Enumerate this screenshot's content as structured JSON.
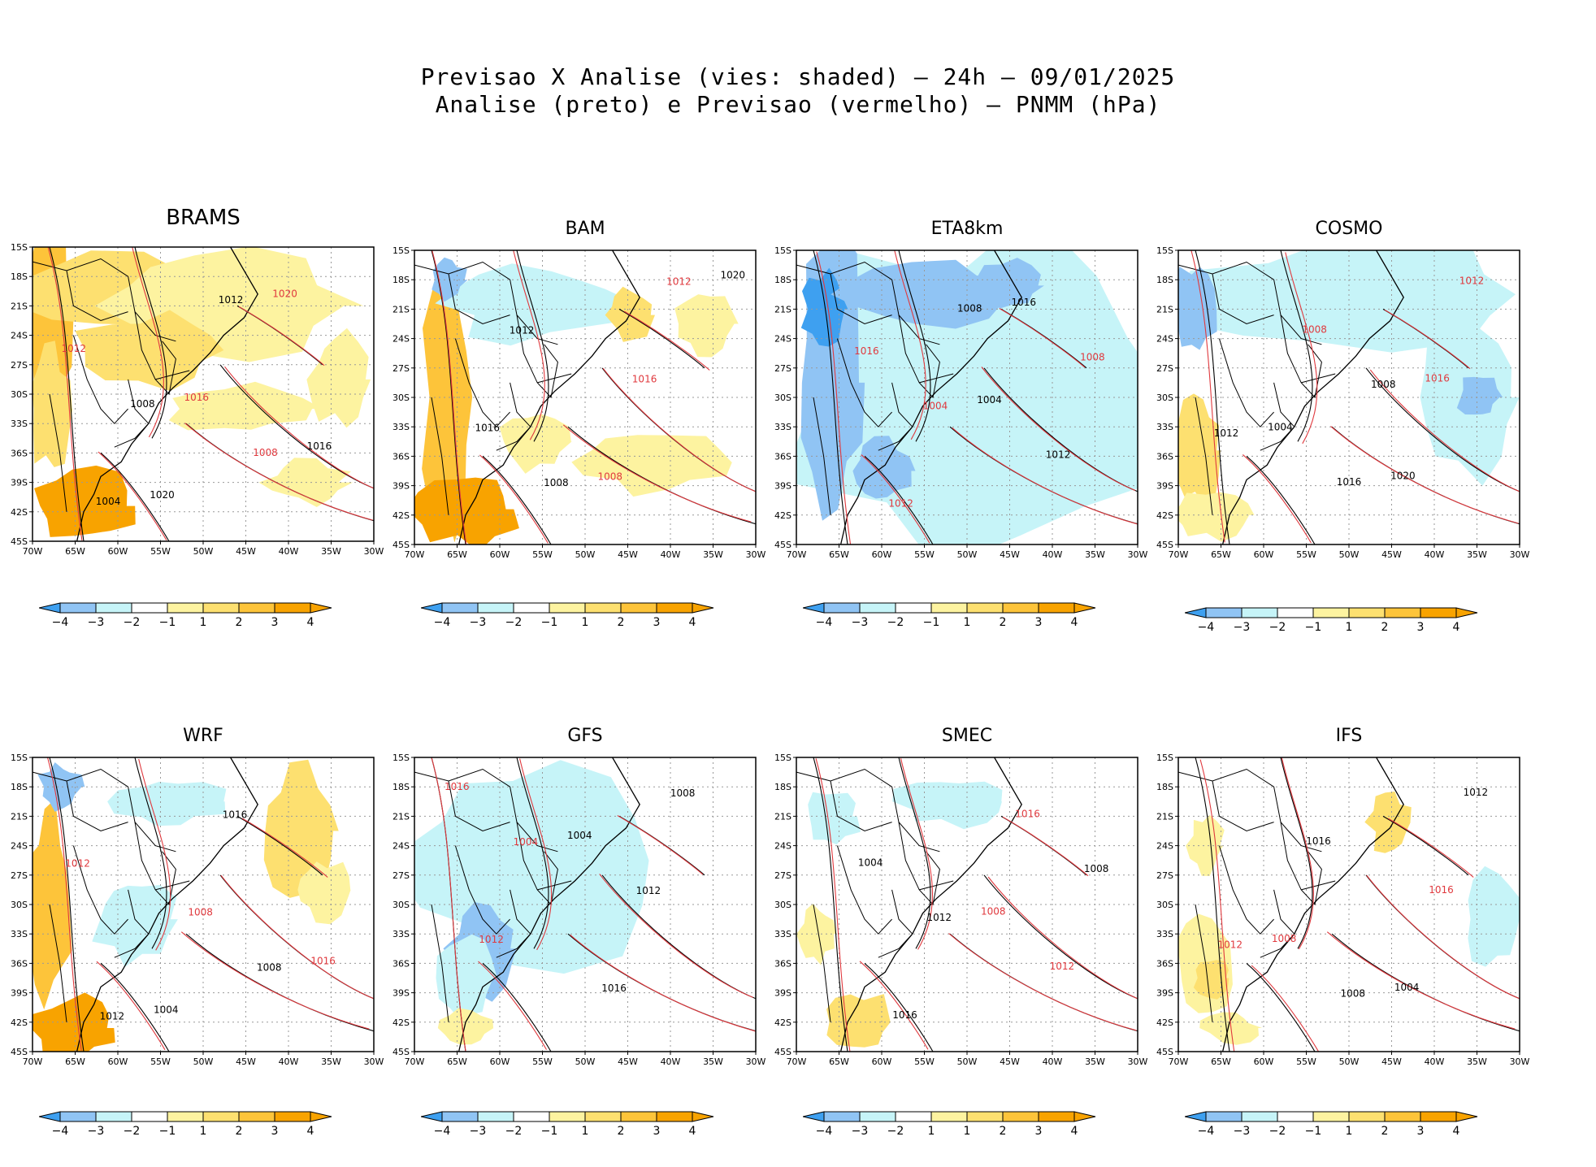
{
  "header": {
    "line1": "Previsao X Analise (vies: shaded) – 24h – 09/01/2025",
    "line2": "Analise (preto) e Previsao (vermelho) – PNMM (hPa)"
  },
  "colors": {
    "analysis_contour": "#000000",
    "forecast_contour": "#e0393e",
    "bias_neg4": "#3ea0f0",
    "bias_neg3": "#90c4f4",
    "bias_neg2": "#c6f4f8",
    "bias_neutral": "#ffffff",
    "bias_pos1": "#fdf3a0",
    "bias_pos2": "#fde070",
    "bias_pos3": "#fdc43a",
    "bias_pos4": "#f8a300"
  },
  "axes": {
    "lat_labels": [
      "15S",
      "18S",
      "21S",
      "24S",
      "27S",
      "30S",
      "33S",
      "36S",
      "39S",
      "42S",
      "45S"
    ],
    "lon_labels": [
      "70W",
      "65W",
      "60W",
      "55W",
      "50W",
      "45W",
      "40W",
      "35W",
      "30W"
    ]
  },
  "colorbar": {
    "labels": [
      "-4",
      "-3",
      "-2",
      "-1",
      "1",
      "2",
      "3",
      "4"
    ]
  },
  "panels": [
    {
      "name": "BRAMS",
      "contours": [
        {
          "t": "1008",
          "c": "k"
        },
        {
          "t": "1008",
          "c": "r"
        },
        {
          "t": "1004",
          "c": "k"
        },
        {
          "t": "1012",
          "c": "k"
        },
        {
          "t": "1012",
          "c": "r"
        },
        {
          "t": "1016",
          "c": "r"
        },
        {
          "t": "1016",
          "c": "k"
        },
        {
          "t": "1020",
          "c": "k"
        },
        {
          "t": "1020",
          "c": "r"
        }
      ]
    },
    {
      "name": "BAM",
      "contours": [
        {
          "t": "1008",
          "c": "k"
        },
        {
          "t": "1012",
          "c": "r"
        },
        {
          "t": "1012",
          "c": "k"
        },
        {
          "t": "1016",
          "c": "r"
        },
        {
          "t": "1016",
          "c": "k"
        },
        {
          "t": "1008",
          "c": "r"
        },
        {
          "t": "1020",
          "c": "k"
        }
      ]
    },
    {
      "name": "ETA8km",
      "contours": [
        {
          "t": "1008",
          "c": "k"
        },
        {
          "t": "1008",
          "c": "r"
        },
        {
          "t": "1004",
          "c": "r"
        },
        {
          "t": "1012",
          "c": "k"
        },
        {
          "t": "1012",
          "c": "r"
        },
        {
          "t": "1016",
          "c": "k"
        },
        {
          "t": "1016",
          "c": "r"
        },
        {
          "t": "1004",
          "c": "k"
        }
      ]
    },
    {
      "name": "COSMO",
      "contours": [
        {
          "t": "1008",
          "c": "k"
        },
        {
          "t": "1012",
          "c": "k"
        },
        {
          "t": "1016",
          "c": "k"
        },
        {
          "t": "1012",
          "c": "r"
        },
        {
          "t": "1008",
          "c": "r"
        },
        {
          "t": "1016",
          "c": "r"
        },
        {
          "t": "1004",
          "c": "k"
        },
        {
          "t": "1020",
          "c": "k"
        }
      ]
    },
    {
      "name": "WRF",
      "contours": [
        {
          "t": "1008",
          "c": "k"
        },
        {
          "t": "1012",
          "c": "k"
        },
        {
          "t": "1016",
          "c": "k"
        },
        {
          "t": "1012",
          "c": "r"
        },
        {
          "t": "1008",
          "c": "r"
        },
        {
          "t": "1016",
          "c": "r"
        },
        {
          "t": "1004",
          "c": "k"
        }
      ]
    },
    {
      "name": "GFS",
      "contours": [
        {
          "t": "1008",
          "c": "k"
        },
        {
          "t": "1004",
          "c": "r"
        },
        {
          "t": "1012",
          "c": "k"
        },
        {
          "t": "1012",
          "c": "r"
        },
        {
          "t": "1016",
          "c": "k"
        },
        {
          "t": "1016",
          "c": "r"
        },
        {
          "t": "1004",
          "c": "k"
        }
      ]
    },
    {
      "name": "SMEC",
      "contours": [
        {
          "t": "1008",
          "c": "k"
        },
        {
          "t": "1012",
          "c": "k"
        },
        {
          "t": "1012",
          "c": "r"
        },
        {
          "t": "1016",
          "c": "k"
        },
        {
          "t": "1016",
          "c": "r"
        },
        {
          "t": "1004",
          "c": "k"
        },
        {
          "t": "1008",
          "c": "r"
        }
      ]
    },
    {
      "name": "IFS",
      "contours": [
        {
          "t": "1012",
          "c": "r"
        },
        {
          "t": "1008",
          "c": "k"
        },
        {
          "t": "1012",
          "c": "k"
        },
        {
          "t": "1016",
          "c": "k"
        },
        {
          "t": "1016",
          "c": "r"
        },
        {
          "t": "1008",
          "c": "r"
        },
        {
          "t": "1004",
          "c": "k"
        }
      ]
    }
  ]
}
